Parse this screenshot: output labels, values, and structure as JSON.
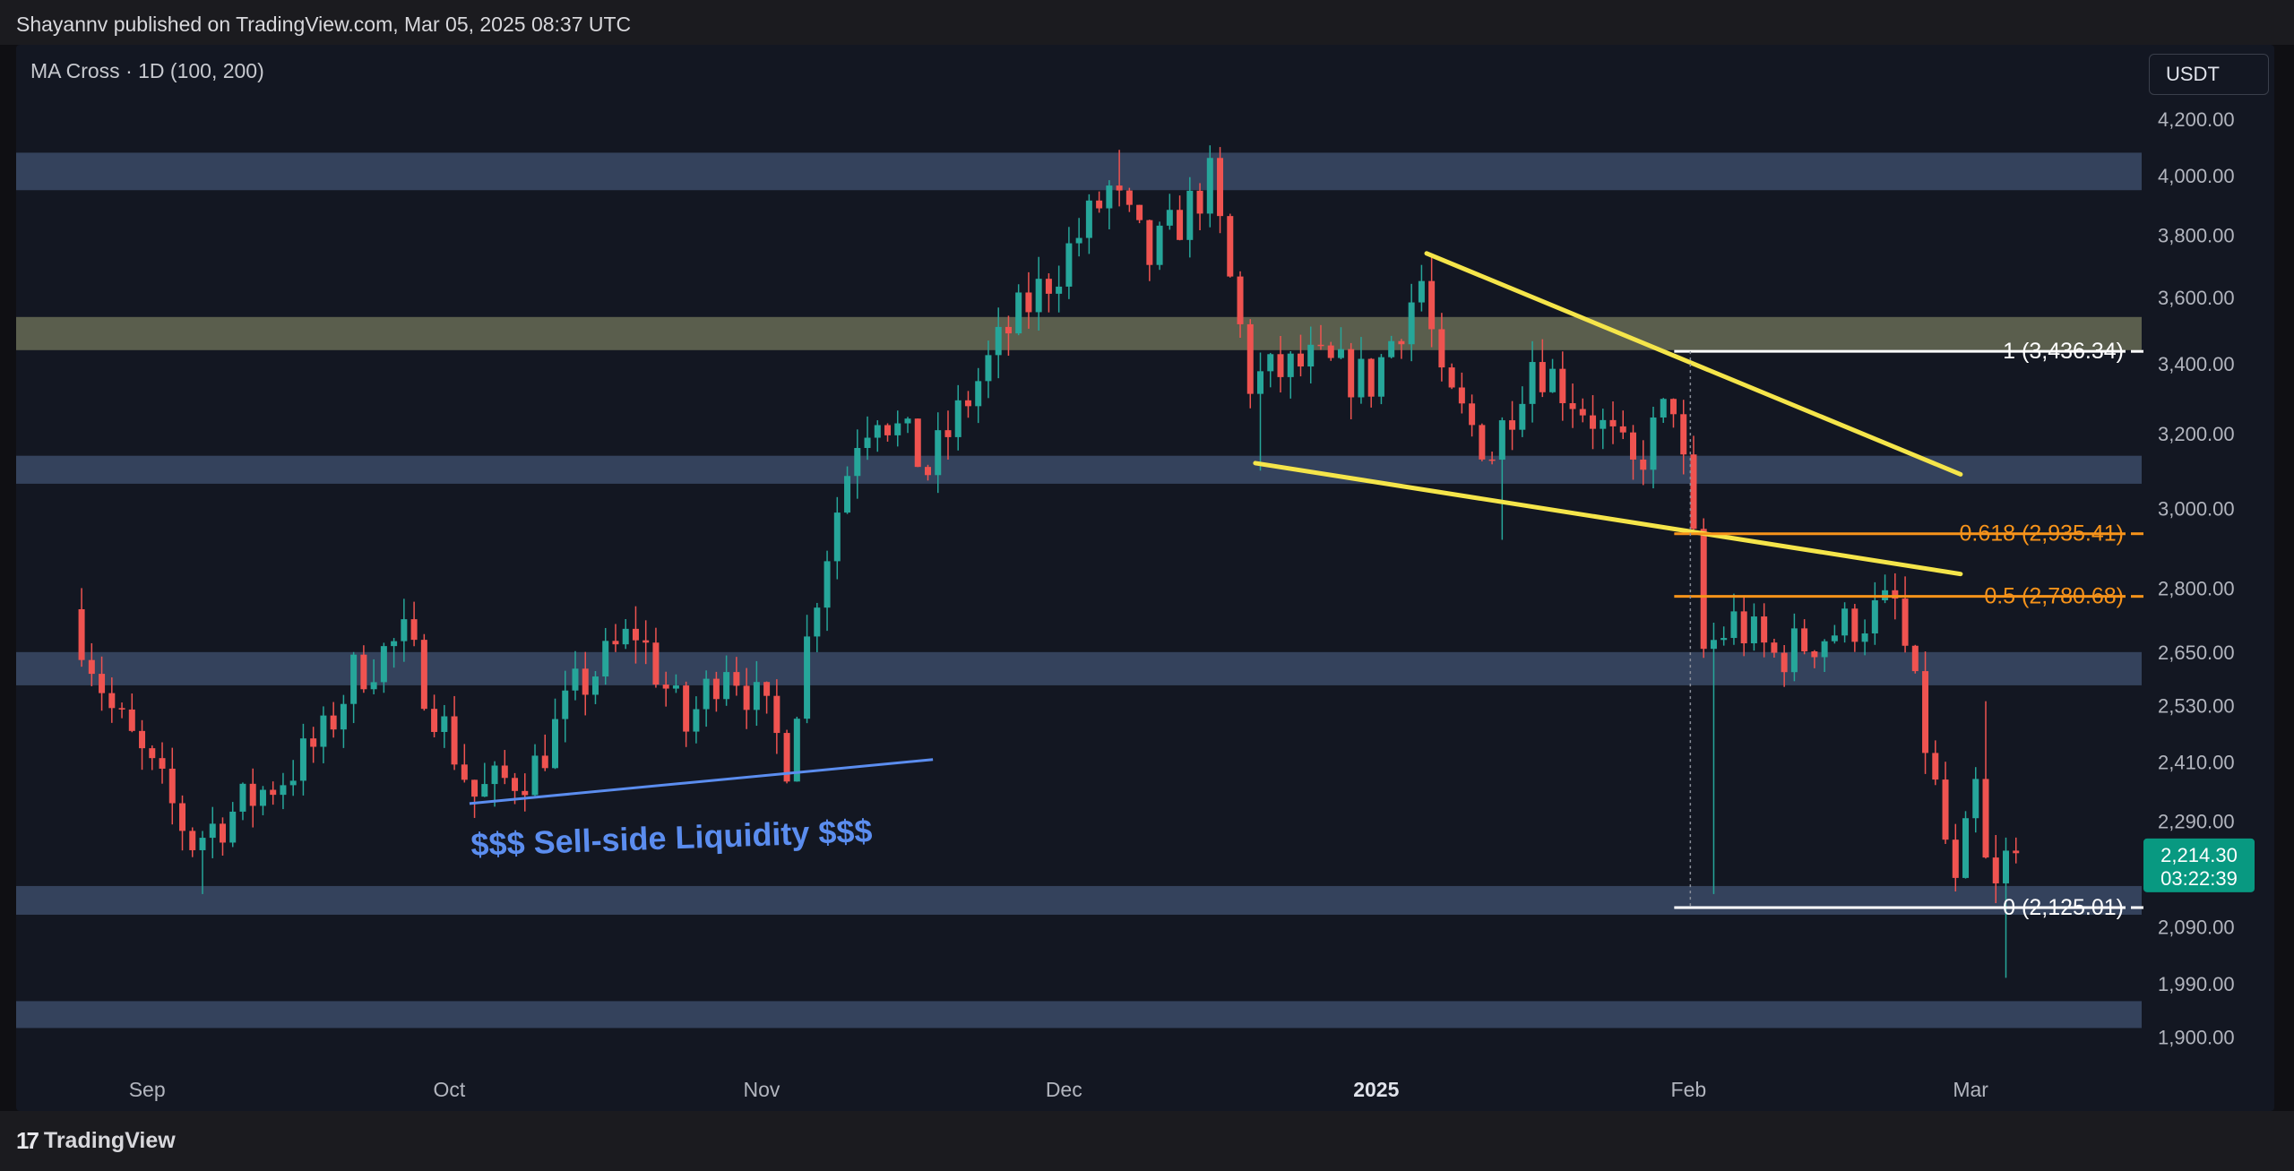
{
  "header": {
    "published": "Shayannv published on TradingView.com, Mar 05, 2025 08:37 UTC"
  },
  "indicator": {
    "label": "MA Cross · 1D (100, 200)"
  },
  "currency": {
    "label": "USDT"
  },
  "footer": {
    "brand": "TradingView",
    "logo_icon": "tradingview-logo-icon"
  },
  "colors": {
    "background": "#131722",
    "zone_blue": "#3b4a66",
    "zone_olive": "#5e6250",
    "candle_up": "#26a69a",
    "candle_down": "#ef5350",
    "wedge": "#f5e54a",
    "fib_white": "#ffffff",
    "fib_orange": "#f7931a",
    "liquidity": "#5b8def",
    "price_tag": "#089981"
  },
  "chart_data": {
    "type": "candlestick",
    "symbol_quote": "USDT",
    "y_axis": {
      "scale": "log",
      "ticks": [
        4200,
        4000,
        3800,
        3600,
        3400,
        3200,
        3000,
        2800,
        2650,
        2530,
        2410,
        2290,
        2090,
        1990,
        1900
      ],
      "tick_labels": [
        "4,200.00",
        "4,000.00",
        "3,800.00",
        "3,600.00",
        "3,400.00",
        "3,200.00",
        "3,000.00",
        "2,800.00",
        "2,650.00",
        "2,530.00",
        "2,410.00",
        "2,290.00",
        "2,090.00",
        "1,990.00",
        "1,900.00"
      ]
    },
    "x_axis": {
      "labels": [
        {
          "text": "Sep",
          "date": "2024-09-01",
          "bold": false
        },
        {
          "text": "Oct",
          "date": "2024-10-01",
          "bold": false
        },
        {
          "text": "Nov",
          "date": "2024-11-01",
          "bold": false
        },
        {
          "text": "Dec",
          "date": "2024-12-01",
          "bold": false
        },
        {
          "text": "2025",
          "date": "2025-01-01",
          "bold": true
        },
        {
          "text": "Feb",
          "date": "2025-02-01",
          "bold": false
        },
        {
          "text": "Mar",
          "date": "2025-03-01",
          "bold": false
        }
      ]
    },
    "price_path_anchors": [
      [
        "2024-08-25",
        2750
      ],
      [
        "2024-08-29",
        2520
      ],
      [
        "2024-09-06",
        2250
      ],
      [
        "2024-09-15",
        2380
      ],
      [
        "2024-09-19",
        2460
      ],
      [
        "2024-09-22",
        2600
      ],
      [
        "2024-09-27",
        2680
      ],
      [
        "2024-10-01",
        2480
      ],
      [
        "2024-10-04",
        2340
      ],
      [
        "2024-10-10",
        2400
      ],
      [
        "2024-10-14",
        2560
      ],
      [
        "2024-10-20",
        2700
      ],
      [
        "2024-10-25",
        2480
      ],
      [
        "2024-10-29",
        2640
      ],
      [
        "2024-11-02",
        2500
      ],
      [
        "2024-11-04",
        2420
      ],
      [
        "2024-11-07",
        2800
      ],
      [
        "2024-11-11",
        3200
      ],
      [
        "2024-11-13",
        3280
      ],
      [
        "2024-11-18",
        3100
      ],
      [
        "2024-11-22",
        3300
      ],
      [
        "2024-11-26",
        3500
      ],
      [
        "2024-12-01",
        3700
      ],
      [
        "2024-12-06",
        3950
      ],
      [
        "2024-12-10",
        3720
      ],
      [
        "2024-12-16",
        3980
      ],
      [
        "2024-12-18",
        3650
      ],
      [
        "2024-12-20",
        3350
      ],
      [
        "2024-12-26",
        3400
      ],
      [
        "2025-01-01",
        3350
      ],
      [
        "2025-01-06",
        3650
      ],
      [
        "2025-01-08",
        3320
      ],
      [
        "2025-01-13",
        3150
      ],
      [
        "2025-01-17",
        3420
      ],
      [
        "2025-01-23",
        3250
      ],
      [
        "2025-01-27",
        3100
      ],
      [
        "2025-01-31",
        3300
      ],
      [
        "2025-02-02",
        2900
      ],
      [
        "2025-02-03",
        2650
      ],
      [
        "2025-02-06",
        2720
      ],
      [
        "2025-02-10",
        2640
      ],
      [
        "2025-02-16",
        2700
      ],
      [
        "2025-02-22",
        2760
      ],
      [
        "2025-02-24",
        2550
      ],
      [
        "2025-02-26",
        2350
      ],
      [
        "2025-02-28",
        2150
      ],
      [
        "2025-03-02",
        2350
      ],
      [
        "2025-03-03",
        2200
      ],
      [
        "2025-03-04",
        2150
      ],
      [
        "2025-03-05",
        2214.3
      ]
    ],
    "extreme_wicks": [
      {
        "date": "2024-09-06",
        "low": 2150
      },
      {
        "date": "2024-12-06",
        "high": 4090
      },
      {
        "date": "2024-12-16",
        "high": 4100
      },
      {
        "date": "2024-12-20",
        "low": 3100
      },
      {
        "date": "2025-01-06",
        "high": 3740
      },
      {
        "date": "2025-01-13",
        "low": 2920
      },
      {
        "date": "2025-02-03",
        "low": 2150
      },
      {
        "date": "2025-03-02",
        "high": 2540
      },
      {
        "date": "2025-03-04",
        "low": 2000
      }
    ],
    "zones": [
      {
        "low": 3950,
        "high": 4080,
        "kind": "resistance-blue"
      },
      {
        "low": 3440,
        "high": 3540,
        "kind": "resistance-olive"
      },
      {
        "low": 3065,
        "high": 3140,
        "kind": "blue"
      },
      {
        "low": 2575,
        "high": 2650,
        "kind": "blue"
      },
      {
        "low": 2112,
        "high": 2165,
        "kind": "blue"
      },
      {
        "low": 1915,
        "high": 1960,
        "kind": "blue"
      }
    ],
    "wedge_lines": [
      {
        "from": [
          "2025-01-06",
          3740
        ],
        "to": [
          "2025-02-28",
          3090
        ]
      },
      {
        "from": [
          "2024-12-20",
          3120
        ],
        "to": [
          "2025-02-28",
          2835
        ]
      }
    ],
    "liquidity_line": {
      "from": [
        "2024-10-03",
        2325
      ],
      "to": [
        "2024-11-18",
        2415
      ]
    },
    "annotations": [
      {
        "text": "$$$ Sell-side Liquidity $$$",
        "date": "2024-10-03",
        "price": 2250
      }
    ],
    "fib_levels": [
      {
        "ratio": "1",
        "price": 3436.34,
        "label": "1 (3,436.34)",
        "color": "white"
      },
      {
        "ratio": "0.618",
        "price": 2935.41,
        "label": "0.618 (2,935.41)",
        "color": "orange"
      },
      {
        "ratio": "0.5",
        "price": 2780.68,
        "label": "0.5 (2,780.68)",
        "color": "orange"
      },
      {
        "ratio": "0",
        "price": 2125.01,
        "label": "0 (2,125.01)",
        "color": "white"
      }
    ],
    "fib_range": {
      "from": "2025-02-01",
      "to": "2025-03-05"
    },
    "last_price": {
      "price": "2,214.30",
      "countdown": "03:22:39",
      "value": 2214.3
    }
  }
}
